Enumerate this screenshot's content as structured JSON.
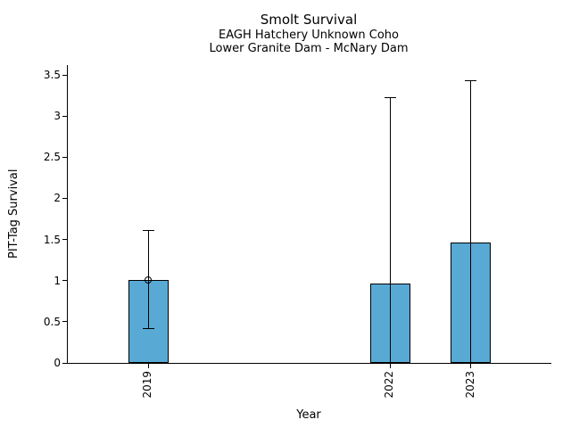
{
  "chart_data": {
    "type": "bar",
    "title": "Smolt Survival",
    "subtitle1": "EAGH Hatchery Unknown Coho",
    "subtitle2": "Lower Granite Dam - McNary Dam",
    "xlabel": "Year",
    "ylabel": "PIT-Tag Survival",
    "categories": [
      "2019",
      "2022",
      "2023"
    ],
    "x_values": [
      2019,
      2022,
      2023
    ],
    "values": [
      1.01,
      0.96,
      1.46
    ],
    "error_low": [
      0.42,
      0,
      0
    ],
    "error_high": [
      1.61,
      3.22,
      3.43
    ],
    "point_markers": [
      true,
      false,
      false
    ],
    "bar_width_years": 0.5,
    "xlim": [
      2018,
      2024
    ],
    "ylim": [
      0,
      3.62
    ],
    "ytick_values": [
      0,
      0.5,
      1,
      1.5,
      2,
      2.5,
      3,
      3.5
    ],
    "ytick_labels": [
      "0",
      "0.5",
      "1",
      "1.5",
      "2",
      "2.5",
      "3",
      "3.5"
    ],
    "bar_color": "#58aad5",
    "bar_edge_color": "#000000",
    "axis_color": "#000000",
    "grid": false,
    "legend": "none"
  }
}
